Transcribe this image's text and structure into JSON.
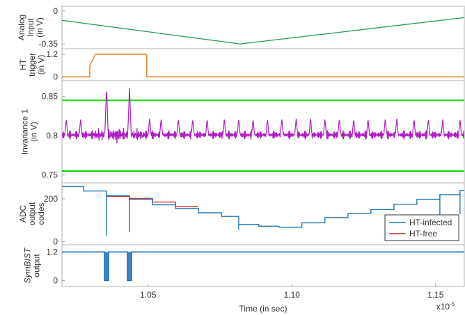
{
  "chart_data": {
    "type": "line",
    "xlabel": "Time (in sec)",
    "x_exponent": "x10",
    "x_exponent_power": "-5",
    "xlim": [
      1.02,
      1.16
    ],
    "xticks": [
      1.05,
      1.1,
      1.15
    ],
    "xtick_labels": [
      "1.05",
      "1.10",
      "1.15"
    ],
    "panels": [
      {
        "id": "analog",
        "ylabel": [
          "Analog",
          "Input",
          "(in V)"
        ],
        "ylim": [
          -0.4,
          0.05
        ],
        "yticks": [
          0,
          -0.35
        ],
        "ytick_labels": [
          "0",
          "-0.35"
        ],
        "series": [
          {
            "color": "#2ca25f",
            "x": [
              1.02,
              1.082,
              1.16
            ],
            "y": [
              -0.1,
              -0.35,
              -0.07
            ]
          }
        ]
      },
      {
        "id": "trigger",
        "ylabel": [
          "HT",
          "trigger",
          "(in V)"
        ],
        "ylim": [
          -0.2,
          1.5
        ],
        "yticks": [
          1.2,
          0
        ],
        "ytick_labels": [
          "1.2",
          "0"
        ],
        "series": [
          {
            "color": "#e07b1a",
            "x": [
              1.02,
              1.0297,
              1.0297,
              1.0316,
              1.0316,
              1.0495,
              1.0495,
              1.16
            ],
            "y": [
              0,
              0,
              0.6,
              1.2,
              1.2,
              1.2,
              0,
              0
            ]
          }
        ]
      },
      {
        "id": "invariance",
        "ylabel": [
          "Invariance 1",
          "(in V)"
        ],
        "ylim": [
          0.74,
          0.87
        ],
        "yticks": [
          0.85,
          0.8,
          0.75
        ],
        "ytick_labels": [
          "0.85",
          "0.8",
          "0.75"
        ],
        "bounds": {
          "color": "#00dd00",
          "upper": 0.845,
          "lower": 0.755
        },
        "signal": {
          "color": "#b01cc4",
          "baseline": 0.801,
          "ripple": 0.006,
          "spike_times": [
            1.0215,
            1.0265,
            1.0355,
            1.0435,
            1.0505,
            1.0545,
            1.0605,
            1.0655,
            1.0705,
            1.0765,
            1.0815,
            1.0865,
            1.0915,
            1.0965,
            1.1015,
            1.1065,
            1.1115,
            1.1165,
            1.1215,
            1.1265,
            1.1325,
            1.1365,
            1.1425,
            1.1475,
            1.1525,
            1.1585
          ],
          "spike_peak": 0.822,
          "ht_spike_times": [
            1.0355,
            1.0435
          ],
          "ht_spike_peak": 0.862
        }
      },
      {
        "id": "adc",
        "ylabel": [
          "ADC",
          "output",
          "codes"
        ],
        "ylim": [
          -15,
          275
        ],
        "yticks": [
          200,
          0
        ],
        "ytick_labels": [
          "200",
          "0"
        ],
        "legend": {
          "position": "bottom-right",
          "entries": [
            "HT-infected",
            "HT-free"
          ]
        },
        "series": [
          {
            "name": "HT-free",
            "color": "#d62728",
            "steps": [
              [
                1.0355,
                1.0435,
                212
              ],
              [
                1.0435,
                1.0515,
                202
              ],
              [
                1.0515,
                1.0595,
                185
              ],
              [
                1.0595,
                1.0675,
                165
              ]
            ]
          },
          {
            "name": "HT-infected",
            "color": "#1f77b4",
            "steps": [
              [
                1.02,
                1.0275,
                258
              ],
              [
                1.0275,
                1.0355,
                237
              ],
              [
                1.0355,
                1.0435,
                215
              ],
              [
                1.0435,
                1.0515,
                198
              ],
              [
                1.0515,
                1.0595,
                172
              ],
              [
                1.0595,
                1.0675,
                155
              ],
              [
                1.0675,
                1.0755,
                135
              ],
              [
                1.0755,
                1.0815,
                118
              ],
              [
                1.0815,
                1.0885,
                80
              ],
              [
                1.0885,
                1.0955,
                72
              ],
              [
                1.0955,
                1.1035,
                67
              ],
              [
                1.1035,
                1.1115,
                88
              ],
              [
                1.1115,
                1.1195,
                112
              ],
              [
                1.1195,
                1.1275,
                132
              ],
              [
                1.1275,
                1.1355,
                150
              ],
              [
                1.1355,
                1.1435,
                175
              ],
              [
                1.1435,
                1.1515,
                198
              ],
              [
                1.1515,
                1.1585,
                220
              ],
              [
                1.1585,
                1.16,
                240
              ]
            ],
            "glitches": [
              [
                1.0355,
                28
              ],
              [
                1.0435,
                45
              ],
              [
                1.0815,
                55
              ],
              [
                1.1515,
                112
              ],
              [
                1.1585,
                128
              ]
            ]
          }
        ]
      },
      {
        "id": "symbist",
        "ylabel_italic": "SymBIST",
        "ylabel": [
          "output"
        ],
        "ylim": [
          -0.25,
          1.5
        ],
        "yticks": [
          1.2,
          0
        ],
        "ytick_labels": [
          "1.2",
          "0"
        ],
        "series": [
          {
            "color": "#1a6fc0",
            "level": 1.2,
            "dropouts": [
              [
                1.0348,
                1.0362
              ],
              [
                1.0428,
                1.0442
              ]
            ]
          }
        ]
      }
    ]
  }
}
